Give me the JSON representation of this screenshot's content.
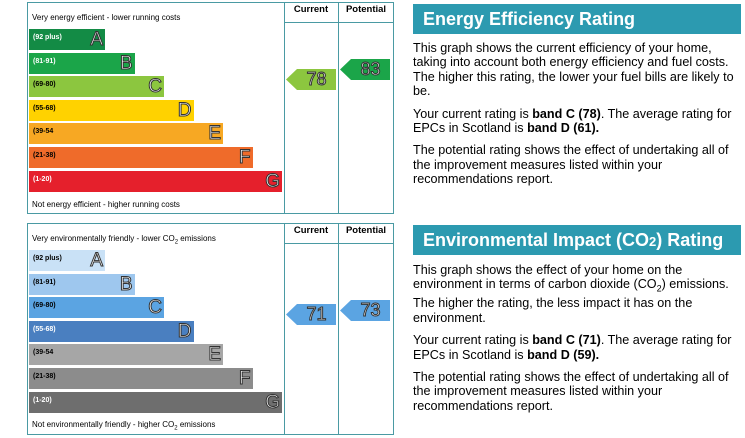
{
  "chart_data": [
    {
      "type": "bar",
      "title": "Energy Efficiency Rating",
      "top_note": "Very energy efficient - lower running costs",
      "bottom_note": "Not energy efficient - higher running costs",
      "column_labels": [
        "Current",
        "Potential"
      ],
      "categories": [
        "A",
        "B",
        "C",
        "D",
        "E",
        "F",
        "G"
      ],
      "ranges": [
        "(92 plus)",
        "(81-91)",
        "(69-80)",
        "(55-68)",
        "(39-54",
        "(21-38)",
        "(1-20)"
      ],
      "colors": [
        "#138b45",
        "#1ba549",
        "#8cc63f",
        "#ffd200",
        "#f7a823",
        "#ef6b2a",
        "#e5202c"
      ],
      "current": 78,
      "potential": 83,
      "current_color": "#8cc63f",
      "potential_color": "#1ba549"
    },
    {
      "type": "bar",
      "title": "Environmental Impact (CO2) Rating",
      "top_note": "Very environmentally friendly - lower CO",
      "top_note_suffix": " emissions",
      "bottom_note": "Not environmentally friendly - higher CO",
      "bottom_note_suffix": " emissions",
      "column_labels": [
        "Current",
        "Potential"
      ],
      "categories": [
        "A",
        "B",
        "C",
        "D",
        "E",
        "F",
        "G"
      ],
      "ranges": [
        "(92 plus)",
        "(81-91)",
        "(69-80)",
        "(55-68)",
        "(39-54",
        "(21-38)",
        "(1-20)"
      ],
      "colors": [
        "#c9e1f6",
        "#9ec7ee",
        "#5ba4e2",
        "#4a7fc0",
        "#a6a6a6",
        "#8c8c8c",
        "#6e6e6e"
      ],
      "current": 71,
      "potential": 73,
      "current_color": "#5ba4e2",
      "potential_color": "#5ba4e2"
    }
  ],
  "panels": {
    "energy": {
      "title": "Energy Efficiency Rating",
      "p1": "This graph shows the current efficiency of your home, taking into account both energy efficiency and fuel costs. The higher this rating, the lower your fuel bills are likely to be.",
      "p2_pre": "Your current rating is ",
      "p2_band": "band C (78)",
      "p2_mid": ". The average rating for EPCs in Scotland is ",
      "p2_avg": "band D (61).",
      "p3": "The potential rating shows the effect of undertaking all of the improvement measures listed within your recommendations report."
    },
    "environment": {
      "title_pre": "Environmental Impact (CO",
      "title_sub": "2",
      "title_post": ") Rating",
      "p1_pre": "This graph shows the effect of your home on the environment in terms of carbon dioxide (CO",
      "p1_sub": "2",
      "p1_post": ") emissions. The higher the rating, the less impact it has on the environment.",
      "p2_pre": "Your current rating is ",
      "p2_band": "band C (71)",
      "p2_mid": ". The average rating for EPCs in Scotland is ",
      "p2_avg": "band D (59).",
      "p3": "The potential rating shows the effect of undertaking all of the improvement measures listed within your recommendations report."
    },
    "panel_color": "#2c9ab0",
    "sub_2": "2"
  }
}
